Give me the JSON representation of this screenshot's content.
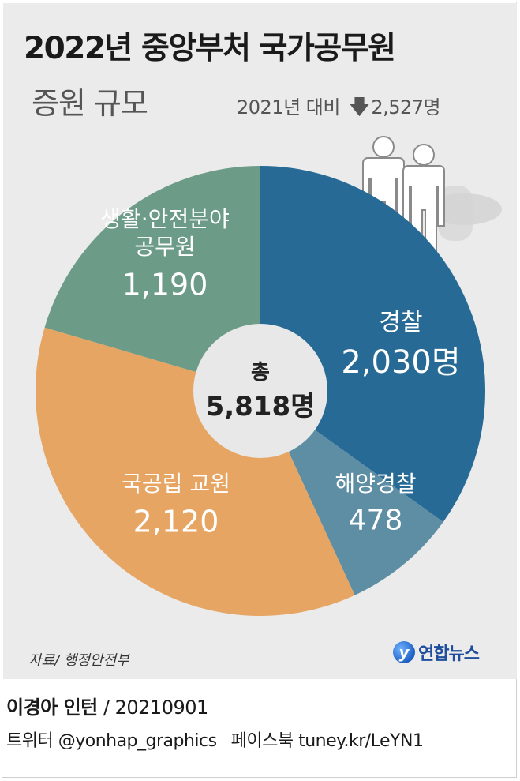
{
  "header": {
    "title": "2022년 중앙부처 국가공무원",
    "subtitle": "증원 규모",
    "comparison_label": "2021년 대비",
    "comparison_arrow": "down-arrow-icon",
    "comparison_value": "2,527명"
  },
  "chart_data": {
    "type": "pie",
    "variant": "donut",
    "total_label": "총",
    "total_value": "5,818명",
    "slices": [
      {
        "name": "경찰",
        "value": 2030,
        "display": "2,030명",
        "color": "#266a95"
      },
      {
        "name": "해양경찰",
        "value": 478,
        "display": "478",
        "color": "#5e8ea4"
      },
      {
        "name": "국공립 교원",
        "value": 2120,
        "display": "2,120",
        "color": "#e6a563"
      },
      {
        "name": "생활·안전분야 공무원",
        "name_lines": [
          "생활·안전분야",
          "공무원"
        ],
        "value": 1190,
        "display": "1,190",
        "color": "#6c9b87"
      }
    ],
    "center_color": "#e8e8e8"
  },
  "decoration": {
    "icon": "people-icon"
  },
  "footer": {
    "source": "자료/ 행정안전부",
    "logo_mark": "y",
    "logo_text": "연합뉴스",
    "author": "이경아 인턴",
    "date": "/ 20210901",
    "twitter": "트위터 @yonhap_graphics",
    "facebook": "페이스북 tuney.kr/LeYN1"
  }
}
